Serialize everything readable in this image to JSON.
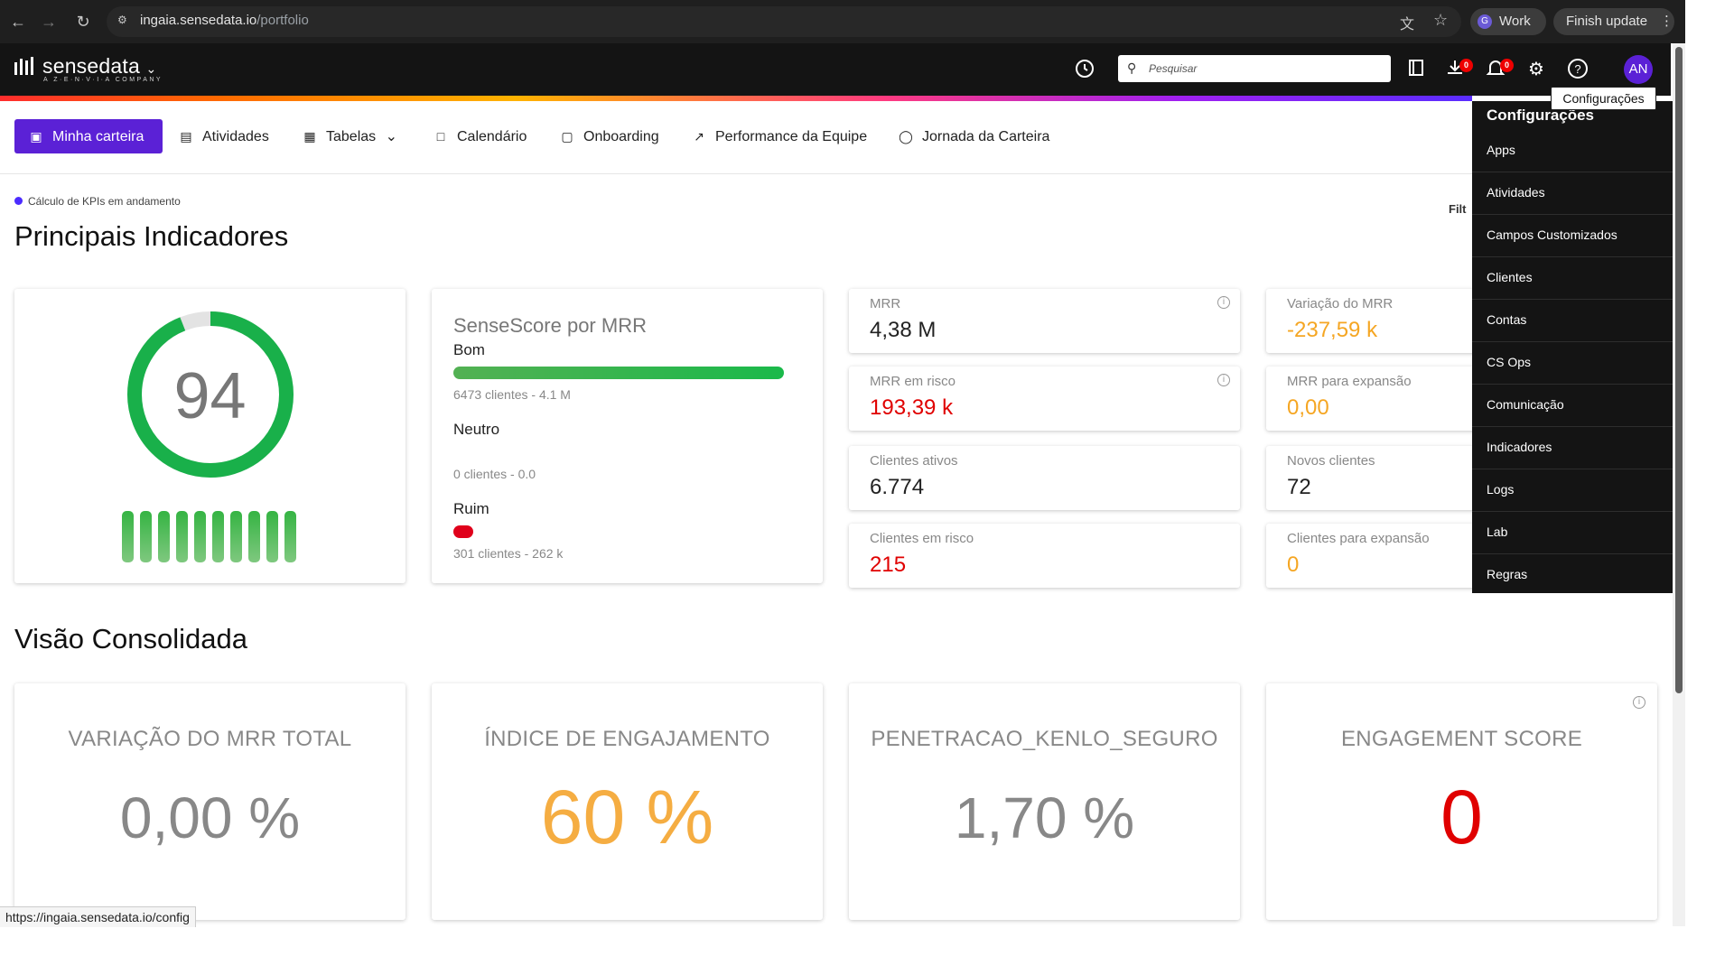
{
  "browser": {
    "url_host": "ingaia.sensedata.io",
    "url_path": "/portfolio",
    "profile_label": "Work",
    "profile_initial": "G",
    "finish_update_label": "Finish update",
    "status_url": "https://ingaia.sensedata.io/config"
  },
  "app": {
    "logo_text": "sensedata",
    "logo_subtitle": "A Z·E·N·V·I·A COMPANY",
    "search_placeholder": "Pesquisar",
    "avatar": "AN",
    "download_badge": "0",
    "notification_badge": "0",
    "tooltip": "Configurações"
  },
  "nav": {
    "items": [
      {
        "label": "Minha carteira",
        "icon": "wallet-icon"
      },
      {
        "label": "Atividades",
        "icon": "document-icon"
      },
      {
        "label": "Tabelas",
        "icon": "table-icon"
      },
      {
        "label": "Calendário",
        "icon": "calendar-icon"
      },
      {
        "label": "Onboarding",
        "icon": "onboarding-icon"
      },
      {
        "label": "Performance da Equipe",
        "icon": "trend-icon"
      },
      {
        "label": "Jornada da Carteira",
        "icon": "journey-icon"
      }
    ]
  },
  "page": {
    "kpi_note": "Cálculo de KPIs em andamento",
    "title": "Principais Indicadores",
    "filter_label": "Filt",
    "section2_title": "Visão Consolidada"
  },
  "score": {
    "value": "94",
    "fraction": 0.94
  },
  "sensescore": {
    "title": "SenseScore por MRR",
    "bom_label": "Bom",
    "bom_sub": "6473 clientes - 4.1 M",
    "neutro_label": "Neutro",
    "neutro_sub": "0 clientes - 0.0",
    "ruim_label": "Ruim",
    "ruim_sub": "301 clientes - 262 k"
  },
  "kpis": [
    {
      "label": "MRR",
      "value": "4,38 M",
      "color": "#222222"
    },
    {
      "label": "Variação do MRR",
      "value": "-237,59 k",
      "color": "#f5a623"
    },
    {
      "label": "MRR em risco",
      "value": "193,39 k",
      "color": "#e00000"
    },
    {
      "label": "MRR para expansão",
      "value": "0,00",
      "color": "#f5a623"
    },
    {
      "label": "Clientes ativos",
      "value": "6.774",
      "color": "#222222"
    },
    {
      "label": "Novos clientes",
      "value": "72",
      "color": "#222222"
    },
    {
      "label": "Clientes em risco",
      "value": "215",
      "color": "#e00000"
    },
    {
      "label": "Clientes para expansão",
      "value": "0",
      "color": "#f5a623"
    }
  ],
  "consolidated": [
    {
      "title": "VARIAÇÃO DO MRR TOTAL",
      "value": "0,00 %",
      "color": "#888888"
    },
    {
      "title": "ÍNDICE DE ENGAJAMENTO",
      "value": "60 %",
      "color": "#f5ad42"
    },
    {
      "title": "PENETRACAO_KENLO_SEGURO",
      "value": "1,70 %",
      "color": "#888888"
    },
    {
      "title": "ENGAGEMENT SCORE",
      "value": "0",
      "color": "#e00000"
    }
  ],
  "dropdown": {
    "title": "Configurações",
    "items": [
      "Apps",
      "Atividades",
      "Campos Customizados",
      "Clientes",
      "Contas",
      "CS Ops",
      "Comunicação",
      "Indicadores",
      "Logs",
      "Lab",
      "Regras"
    ]
  }
}
